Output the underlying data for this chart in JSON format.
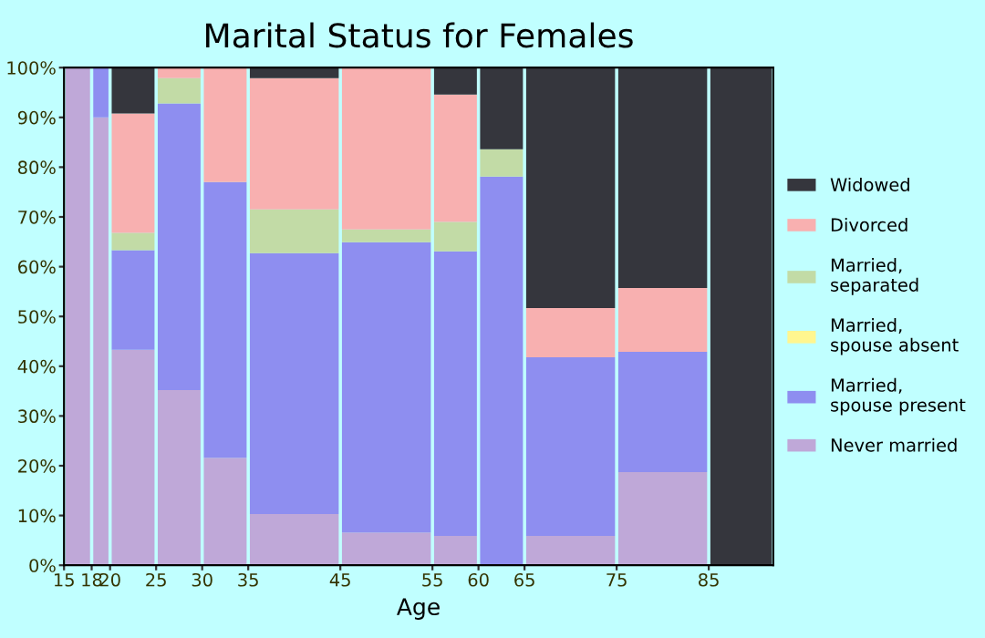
{
  "chart_data": {
    "type": "bar",
    "stacked": true,
    "title": "Marital Status for Females",
    "xlabel": "Age",
    "x": [
      16.5,
      19,
      22.5,
      27.5,
      32.5,
      40,
      50,
      57.5,
      62.5,
      70,
      80,
      88.5
    ],
    "xlim": [
      15,
      92
    ],
    "xticks": [
      15,
      18,
      20,
      25,
      30,
      35,
      45,
      55,
      60,
      65,
      75,
      85
    ],
    "ylim": [
      0,
      100
    ],
    "yticks": [
      {
        "value": 0,
        "label": "0%"
      },
      {
        "value": 10,
        "label": "10%"
      },
      {
        "value": 20,
        "label": "20%"
      },
      {
        "value": 30,
        "label": "30%"
      },
      {
        "value": 40,
        "label": "40%"
      },
      {
        "value": 50,
        "label": "50%"
      },
      {
        "value": 60,
        "label": "60%"
      },
      {
        "value": 70,
        "label": "70%"
      },
      {
        "value": 80,
        "label": "80%"
      },
      {
        "value": 90,
        "label": "90%"
      },
      {
        "value": 100,
        "label": "100%"
      }
    ],
    "series": [
      {
        "name": "Never married",
        "color": "#bfa8d8",
        "values": [
          100,
          90,
          43.3,
          35.2,
          21.6,
          10.3,
          6.6,
          5.9,
          0,
          5.9,
          18.7,
          0
        ]
      },
      {
        "name": "Married,\nspouse present",
        "color": "#8e8ef0",
        "values": [
          0,
          10,
          20,
          57.6,
          55.4,
          52.4,
          58.3,
          57.2,
          78.1,
          35.9,
          24.2,
          0
        ]
      },
      {
        "name": "Married,\nspouse absent",
        "color": "#fff68f",
        "values": [
          0,
          0,
          0,
          0,
          0,
          0,
          0,
          0,
          0,
          0,
          0,
          0
        ]
      },
      {
        "name": "Married,\nseparated",
        "color": "#c2dba6",
        "values": [
          0,
          0,
          3.5,
          5.1,
          0,
          8.8,
          2.6,
          5.9,
          5.5,
          0,
          0,
          0
        ]
      },
      {
        "name": "Divorced",
        "color": "#f8b0b0",
        "values": [
          0,
          0,
          24,
          2.1,
          23,
          26.4,
          32.5,
          25.6,
          0,
          9.9,
          12.8,
          0
        ]
      },
      {
        "name": "Widowed",
        "color": "#35363d",
        "values": [
          0,
          0,
          9.4,
          0,
          0,
          2.1,
          0,
          5.4,
          16.4,
          48.3,
          44.3,
          100
        ]
      }
    ],
    "grid": false,
    "legend": "right"
  }
}
